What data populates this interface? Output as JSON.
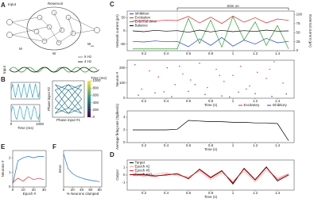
{
  "panel_labels": [
    "A",
    "B",
    "C",
    "D",
    "E",
    "F"
  ],
  "diagram": {
    "input": "Input",
    "reservoir": "Reservoir",
    "m": "M",
    "w": "W",
    "w_out": "W",
    "w_out_sub": "out",
    "legend": [
      "5 Hz",
      "4 Hz"
    ],
    "input_label": "Input"
  },
  "chart_data": [
    {
      "type": "line",
      "ylabel": "Network current (pA)",
      "y2label": "External current (pA)",
      "x": [
        0.1,
        0.2,
        0.3,
        0.4,
        0.5,
        0.6,
        0.7,
        0.8,
        0.9,
        1.0,
        1.1,
        1.2,
        1.3,
        1.4,
        1.5
      ],
      "xlim": [
        0.05,
        1.55
      ],
      "xticks": [
        0.2,
        0.4,
        0.6,
        0.8,
        1.0,
        1.2,
        1.4
      ],
      "ylim": [
        -75,
        75
      ],
      "yticks": [
        -50,
        0,
        50
      ],
      "y2lim": [
        0,
        110
      ],
      "y2ticks": [
        0,
        25,
        50,
        75,
        100
      ],
      "stim_on": {
        "label": "Stim on",
        "start": 0.5,
        "end": 1.5
      },
      "legend": "upper left",
      "series": [
        {
          "name": "Inhibition",
          "color": "#1f3fd0",
          "values": [
            -40,
            -42,
            -38,
            -41,
            -40,
            -60,
            -30,
            -55,
            -25,
            -58,
            -35,
            -50,
            -28,
            -45,
            -40
          ]
        },
        {
          "name": "Excitation",
          "color": "#e0262b",
          "values": [
            38,
            40,
            37,
            41,
            39,
            55,
            30,
            52,
            28,
            56,
            33,
            50,
            30,
            45,
            40
          ]
        },
        {
          "name": "External drive",
          "color": "#2ca02c",
          "axis": "y2",
          "values": [
            5,
            5,
            5,
            5,
            5,
            90,
            20,
            85,
            10,
            95,
            30,
            80,
            15,
            70,
            5
          ]
        },
        {
          "name": "Balance",
          "color": "#000000",
          "values": [
            0,
            -3,
            2,
            -1,
            1,
            -5,
            3,
            -4,
            2,
            -3,
            1,
            -2,
            3,
            -1,
            0
          ]
        }
      ]
    },
    {
      "type": "scatter",
      "ylabel": "Neuron #",
      "xlabel": "Time (s)",
      "xlim": [
        0.05,
        1.55
      ],
      "xticks": [
        0.2,
        0.4,
        0.6,
        0.8,
        1.0,
        1.2,
        1.4
      ],
      "ylim": [
        0,
        250
      ],
      "yticks": [
        0,
        100,
        200
      ],
      "legend": "below",
      "series": [
        {
          "name": "Excitatory",
          "color": "#e0262b",
          "x": [
            0.12,
            0.25,
            0.33,
            0.41,
            0.48,
            0.55,
            0.62,
            0.7,
            0.77,
            0.85,
            0.92,
            1.0,
            1.07,
            1.15,
            1.22,
            1.3,
            1.37,
            1.45,
            0.18,
            0.52,
            0.88,
            1.12,
            1.33,
            0.66
          ],
          "values": [
            220,
            180,
            140,
            200,
            90,
            160,
            120,
            230,
            70,
            190,
            110,
            150,
            210,
            80,
            170,
            130,
            240,
            100,
            60,
            210,
            150,
            60,
            190,
            90
          ]
        },
        {
          "name": "Inhibitory",
          "color": "#1f3fd0",
          "x": [
            0.15,
            0.3,
            0.45,
            0.6,
            0.75,
            0.9,
            1.05,
            1.2,
            1.35,
            1.48,
            0.38,
            0.97
          ],
          "values": [
            20,
            35,
            10,
            45,
            25,
            15,
            40,
            30,
            12,
            28,
            42,
            8
          ]
        }
      ]
    },
    {
      "type": "line",
      "ylabel": "Average firing rate (Spikes/s)",
      "xlabel": "Time (s)",
      "x": [
        0.1,
        0.2,
        0.3,
        0.4,
        0.5,
        0.6,
        0.7,
        0.8,
        0.9,
        1.0,
        1.1,
        1.2,
        1.3,
        1.4,
        1.5
      ],
      "xlim": [
        0.05,
        1.55
      ],
      "xticks": [
        0.2,
        0.4,
        0.6,
        0.8,
        1.0,
        1.2,
        1.4
      ],
      "ylim": [
        0,
        5
      ],
      "yticks": [
        0,
        2,
        4
      ],
      "series": [
        {
          "color": "#000000",
          "values": [
            2,
            2,
            2,
            2,
            2.1,
            3.5,
            3.4,
            3.3,
            3.3,
            3.2,
            3.2,
            3.1,
            3.1,
            3,
            0.3
          ]
        }
      ]
    },
    {
      "type": "line",
      "ylabel": "Output",
      "xlabel": "Time (s)",
      "x": [
        0.1,
        0.2,
        0.3,
        0.4,
        0.5,
        0.6,
        0.7,
        0.8,
        0.9,
        1.0,
        1.1,
        1.2,
        1.3,
        1.4,
        1.5
      ],
      "xlim": [
        0.05,
        1.55
      ],
      "xticks": [
        0.2,
        0.4,
        0.6,
        0.8,
        1.0,
        1.2,
        1.4
      ],
      "ylim": [
        -2,
        2
      ],
      "yticks": [
        -1,
        0,
        1
      ],
      "legend": "upper left",
      "series": [
        {
          "name": "Target",
          "color": "#000000",
          "values": [
            0,
            0.1,
            -0.1,
            0,
            0.2,
            -0.5,
            0.8,
            -0.3,
            0.6,
            -1.2,
            0.9,
            -0.6,
            1.1,
            -0.8,
            0
          ]
        },
        {
          "name": "Epoch #2",
          "color": "#f4a3a3",
          "values": [
            0.2,
            -0.2,
            0.1,
            0.3,
            -0.1,
            -0.2,
            0.5,
            -0.6,
            0.3,
            -0.8,
            0.5,
            -0.9,
            0.7,
            -0.4,
            0.2
          ]
        },
        {
          "name": "Epoch #5",
          "color": "#e0262b",
          "values": [
            0.1,
            0,
            -0.2,
            0.1,
            0.1,
            -0.4,
            0.7,
            -0.4,
            0.5,
            -1,
            0.8,
            -0.7,
            1,
            -0.6,
            0.1
          ]
        },
        {
          "name": "Epoch #10",
          "color": "#8b0000",
          "values": [
            0,
            0.1,
            -0.1,
            0,
            0.2,
            -0.5,
            0.8,
            -0.3,
            0.6,
            -1.1,
            0.9,
            -0.6,
            1.05,
            -0.75,
            0
          ]
        }
      ]
    },
    {
      "type": "line",
      "x": [
        0,
        50,
        100,
        150,
        200,
        250,
        300,
        350,
        400,
        450,
        500,
        550,
        600,
        650,
        700,
        750,
        800,
        850,
        900,
        950,
        1000
      ],
      "xlim": [
        0,
        1000
      ],
      "ylim": [
        -1.2,
        1.2
      ],
      "series": [
        {
          "color": "#35a6c9",
          "values": [
            0,
            1,
            0,
            -1,
            0,
            1,
            0,
            -1,
            0,
            1,
            0,
            -1,
            0,
            1,
            0,
            -1,
            0,
            1,
            0,
            -1,
            0
          ]
        }
      ]
    },
    {
      "type": "line",
      "xlabel": "Time (ms)",
      "x": [
        0,
        50,
        100,
        150,
        200,
        250,
        300,
        350,
        400,
        450,
        500,
        550,
        600,
        650,
        700,
        750,
        800,
        850,
        900,
        950,
        1000
      ],
      "xlim": [
        0,
        1000
      ],
      "xticks": [
        0,
        1000
      ],
      "ylim": [
        -1.2,
        1.2
      ],
      "series": [
        {
          "color": "#35a6c9",
          "values": [
            0,
            0.95,
            0.59,
            -0.59,
            -0.95,
            0,
            0.95,
            0.59,
            -0.59,
            -0.95,
            0,
            0.95,
            0.59,
            -0.59,
            -0.95,
            0,
            0.95,
            0.59,
            -0.59,
            -0.95,
            0
          ]
        }
      ]
    },
    {
      "type": "line",
      "xlabel": "Phase input #1",
      "ylabel": "Phase input #2",
      "xlim": [
        -1.2,
        1.2
      ],
      "ylim": [
        -1.2,
        1.2
      ],
      "colorbar": {
        "label": "Time (ms)",
        "ticks": [
          0,
          200,
          400,
          600,
          800,
          1000
        ]
      },
      "series": [
        {
          "color": "#2a788e",
          "x": [
            0,
            1,
            0,
            -1,
            0,
            1,
            0,
            -1,
            0,
            1,
            0,
            -1,
            0,
            1,
            0,
            -1,
            0,
            1,
            0,
            -1,
            0
          ],
          "values": [
            0,
            0.95,
            0.59,
            -0.59,
            -0.95,
            0,
            0.95,
            0.59,
            -0.59,
            -0.95,
            0,
            0.95,
            0.59,
            -0.59,
            -0.95,
            0,
            0.95,
            0.59,
            -0.59,
            -0.95,
            0
          ]
        }
      ]
    },
    {
      "type": "line",
      "xlabel": "Epoch #",
      "ylabel": "Neurons #",
      "x": [
        0,
        5,
        10,
        15,
        20,
        25,
        30
      ],
      "xlim": [
        0,
        32
      ],
      "xticks": [
        0,
        10,
        20,
        30
      ],
      "ylim": [
        0,
        2.5
      ],
      "yticks": [
        0,
        1,
        2
      ],
      "series": [
        {
          "color": "#1f6fc0",
          "values": [
            0.2,
            1.8,
            2,
            2.1,
            2,
            2.1,
            2.1
          ]
        },
        {
          "color": "#e0262b",
          "values": [
            0.3,
            0.6,
            0.4,
            0.7,
            0.5,
            0.6,
            0.5
          ]
        }
      ]
    },
    {
      "type": "line",
      "xlabel": "% Neurons clamped",
      "ylabel": "Error",
      "x": [
        0,
        10,
        20,
        30,
        40,
        50,
        60,
        70,
        80
      ],
      "xlim": [
        0,
        85
      ],
      "xticks": [
        0,
        20,
        40,
        60,
        80
      ],
      "ylim": [
        0,
        1.1
      ],
      "series": [
        {
          "color": "#1f6fc0",
          "values": [
            1,
            0.55,
            0.4,
            0.32,
            0.27,
            0.23,
            0.2,
            0.18,
            0.16
          ]
        }
      ]
    }
  ]
}
